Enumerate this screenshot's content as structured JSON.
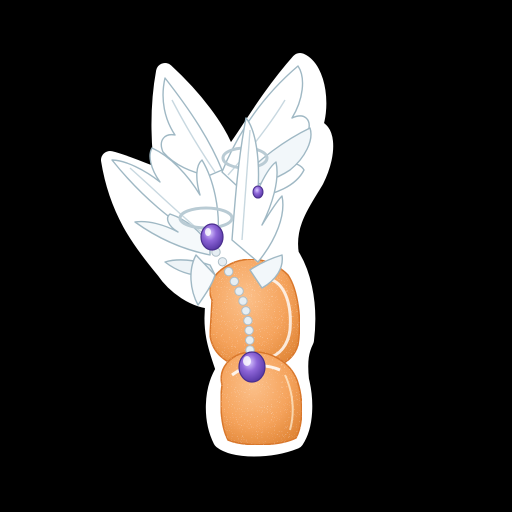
{
  "image": {
    "subject": "winged-boots-sticker",
    "background_color": "#000000",
    "sticker_border_color": "#ffffff",
    "colors": {
      "boot_main": "#f5a35c",
      "boot_shade": "#e98a3f",
      "boot_sparkle": "#fff1d6",
      "wing_fill": "#ffffff",
      "wing_shadow": "#dbe7ec",
      "wing_outline": "#9fb8c4",
      "pearl": "#e6eef3",
      "gem_main": "#8e66d8",
      "gem_dark": "#5a3aa8",
      "gem_light": "#d8c8ff"
    }
  }
}
